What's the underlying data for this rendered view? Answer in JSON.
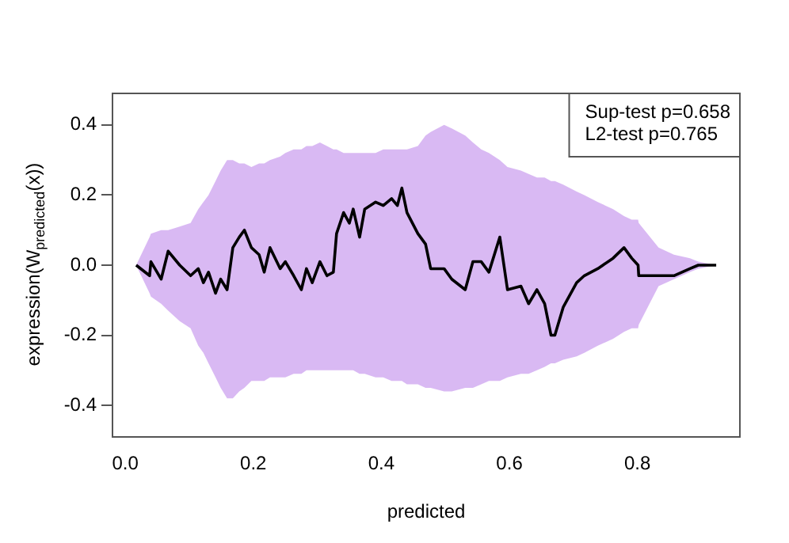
{
  "chart_data": {
    "type": "line",
    "xlabel": "predicted",
    "ylabel": "expression(W$_{predicted}$(x))",
    "annotations": [
      "Sup-test p=0.658",
      "L2-test p=0.765"
    ],
    "xlim": [
      -0.02,
      0.96
    ],
    "ylim": [
      -0.49,
      0.49
    ],
    "xticks": [
      {
        "value": 0,
        "label": "0.0"
      },
      0.2,
      0.4,
      0.6,
      0.8
    ],
    "yticks": [
      -0.4,
      -0.2,
      {
        "value": 0,
        "label": "0.0"
      },
      0.2,
      0.4
    ],
    "grid": false,
    "marker": "none",
    "line_style": "solid",
    "series": [
      {
        "color": "#000000",
        "x": [
          0.017,
          0.038,
          0.04,
          0.056,
          0.067,
          0.085,
          0.102,
          0.114,
          0.122,
          0.13,
          0.141,
          0.149,
          0.159,
          0.168,
          0.178,
          0.186,
          0.197,
          0.209,
          0.217,
          0.226,
          0.242,
          0.25,
          0.263,
          0.275,
          0.283,
          0.292,
          0.304,
          0.315,
          0.325,
          0.33,
          0.341,
          0.35,
          0.356,
          0.366,
          0.374,
          0.391,
          0.403,
          0.416,
          0.425,
          0.432,
          0.44,
          0.457,
          0.469,
          0.477,
          0.498,
          0.51,
          0.531,
          0.543,
          0.556,
          0.568,
          0.585,
          0.597,
          0.618,
          0.63,
          0.643,
          0.655,
          0.665,
          0.671,
          0.684,
          0.705,
          0.717,
          0.738,
          0.762,
          0.779,
          0.791,
          0.801,
          0.802,
          0.833,
          0.857,
          0.882,
          0.895,
          0.923
        ],
        "values": [
          0,
          -0.03,
          0.01,
          -0.04,
          0.04,
          0,
          -0.03,
          -0.01,
          -0.05,
          -0.02,
          -0.08,
          -0.04,
          -0.07,
          0.05,
          0.08,
          0.1,
          0.05,
          0.03,
          -0.02,
          0.05,
          -0.01,
          0.01,
          -0.03,
          -0.07,
          -0.01,
          -0.05,
          0.01,
          -0.03,
          -0.02,
          0.09,
          0.15,
          0.12,
          0.16,
          0.08,
          0.16,
          0.18,
          0.17,
          0.19,
          0.17,
          0.22,
          0.15,
          0.09,
          0.06,
          -0.01,
          -0.01,
          -0.04,
          -0.07,
          0.01,
          0.01,
          -0.02,
          0.08,
          -0.07,
          -0.06,
          -0.11,
          -0.07,
          -0.11,
          -0.2,
          -0.2,
          -0.12,
          -0.05,
          -0.03,
          -0.01,
          0.02,
          0.05,
          0.02,
          0,
          -0.03,
          -0.03,
          -0.03,
          -0.01,
          0,
          0
        ],
        "lower": [
          0,
          -0.08,
          -0.09,
          -0.11,
          -0.13,
          -0.16,
          -0.18,
          -0.23,
          -0.25,
          -0.28,
          -0.32,
          -0.35,
          -0.38,
          -0.38,
          -0.36,
          -0.35,
          -0.33,
          -0.33,
          -0.33,
          -0.32,
          -0.32,
          -0.32,
          -0.31,
          -0.31,
          -0.3,
          -0.3,
          -0.3,
          -0.3,
          -0.3,
          -0.3,
          -0.3,
          -0.3,
          -0.3,
          -0.31,
          -0.31,
          -0.32,
          -0.32,
          -0.33,
          -0.33,
          -0.33,
          -0.34,
          -0.34,
          -0.35,
          -0.35,
          -0.36,
          -0.36,
          -0.35,
          -0.35,
          -0.34,
          -0.33,
          -0.33,
          -0.32,
          -0.31,
          -0.31,
          -0.3,
          -0.29,
          -0.28,
          -0.28,
          -0.27,
          -0.26,
          -0.25,
          -0.23,
          -0.21,
          -0.19,
          -0.18,
          -0.18,
          -0.17,
          -0.06,
          -0.04,
          -0.02,
          -0.01,
          0
        ],
        "upper": [
          0,
          0.08,
          0.09,
          0.1,
          0.1,
          0.11,
          0.12,
          0.16,
          0.18,
          0.2,
          0.24,
          0.27,
          0.3,
          0.3,
          0.29,
          0.29,
          0.28,
          0.29,
          0.29,
          0.3,
          0.31,
          0.32,
          0.33,
          0.33,
          0.34,
          0.34,
          0.35,
          0.34,
          0.33,
          0.33,
          0.32,
          0.32,
          0.32,
          0.32,
          0.32,
          0.32,
          0.33,
          0.33,
          0.33,
          0.33,
          0.33,
          0.34,
          0.37,
          0.38,
          0.4,
          0.39,
          0.37,
          0.35,
          0.33,
          0.32,
          0.3,
          0.28,
          0.27,
          0.26,
          0.25,
          0.25,
          0.24,
          0.24,
          0.23,
          0.21,
          0.2,
          0.18,
          0.16,
          0.14,
          0.13,
          0.13,
          0.12,
          0.05,
          0.03,
          0.02,
          0.01,
          0
        ]
      }
    ]
  }
}
